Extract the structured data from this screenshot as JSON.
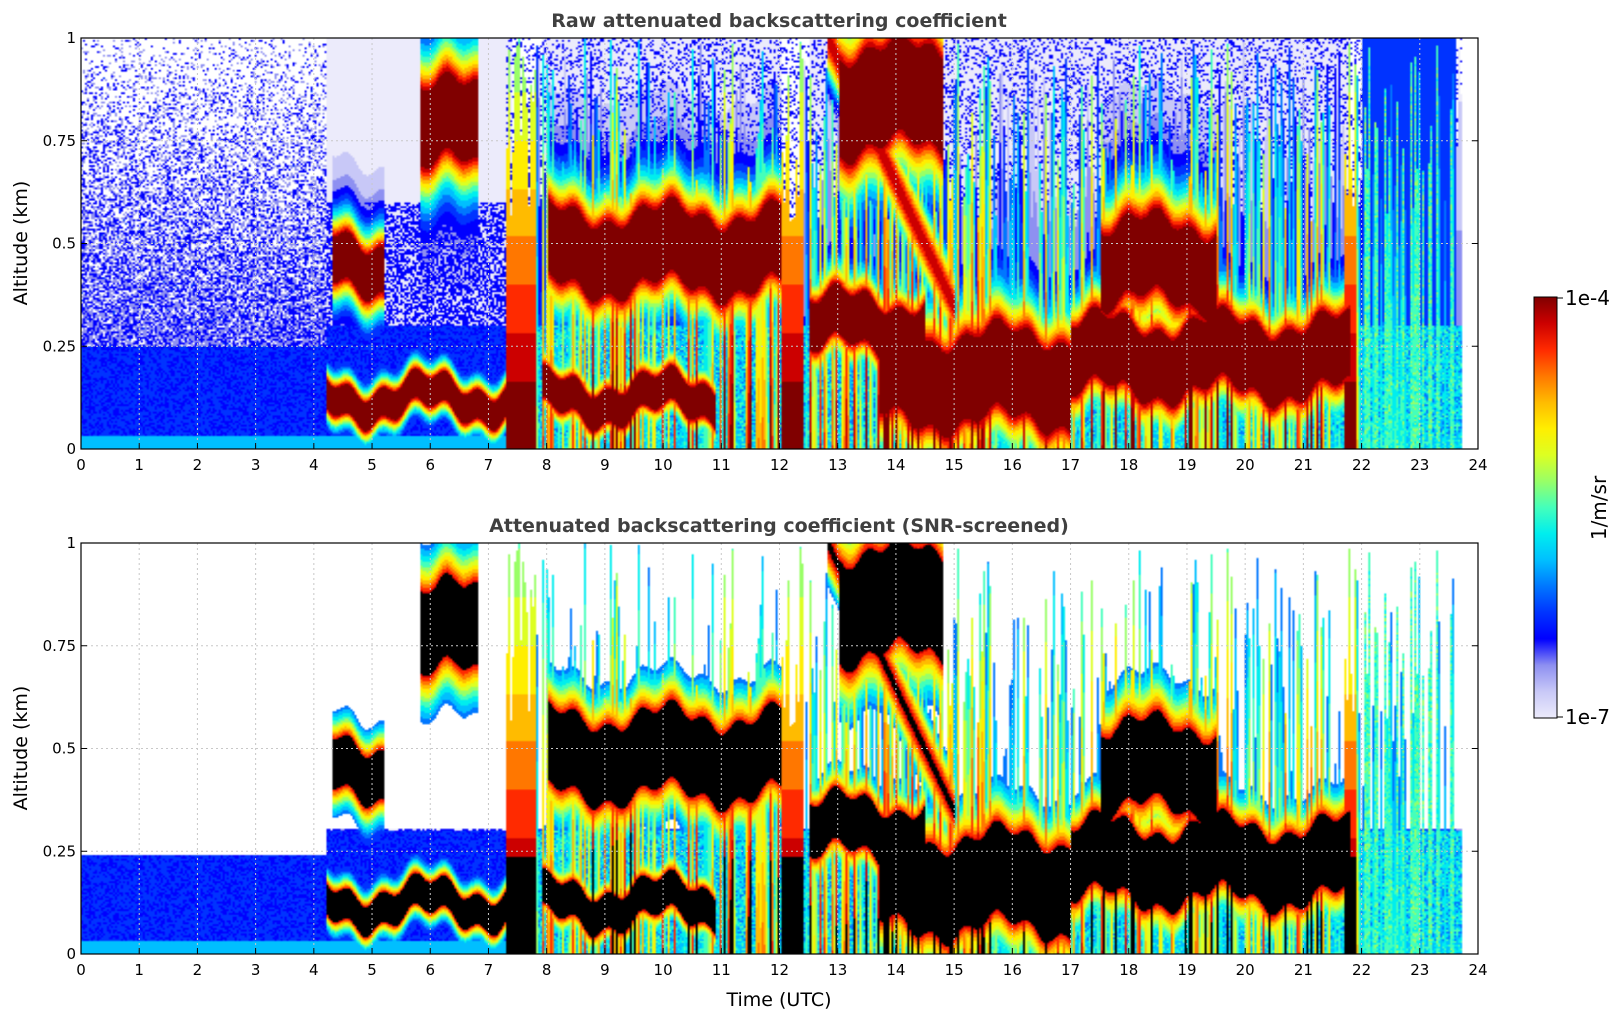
{
  "colors": {
    "jet": [
      "#ecebfb",
      "#c8c8f7",
      "#8e90f1",
      "#0000ff",
      "#0033ff",
      "#0077ff",
      "#00bfff",
      "#00eeee",
      "#44ffbb",
      "#99ff66",
      "#ddff22",
      "#ffee00",
      "#ffbb00",
      "#ff7700",
      "#ff2a00",
      "#cc0000",
      "#800000"
    ],
    "screened_saturated": "#000000",
    "grid": "#c8c8c8"
  },
  "chart_data": [
    {
      "type": "heatmap",
      "title": "Raw attenuated backscattering coefficient",
      "xlabel": "",
      "ylabel": "Altitude (km)",
      "xlim": [
        0,
        24
      ],
      "ylim": [
        0,
        1
      ],
      "xticks": [
        "0",
        "1",
        "2",
        "3",
        "4",
        "5",
        "6",
        "7",
        "8",
        "9",
        "10",
        "11",
        "12",
        "13",
        "14",
        "15",
        "16",
        "17",
        "18",
        "19",
        "20",
        "21",
        "22",
        "23",
        "24"
      ],
      "yticks": [
        "0",
        "0.25",
        "0.5",
        "0.75",
        "1"
      ],
      "data_end_time": 23.7,
      "features": [
        {
          "kind": "noise",
          "t0": 0.0,
          "t1": 4.2,
          "note": "background noise, dense below 0.3 km"
        },
        {
          "kind": "layer",
          "t0": 4.2,
          "t1": 7.4,
          "alt": 0.12,
          "width": 0.035,
          "level": 0.95
        },
        {
          "kind": "layer",
          "t0": 4.3,
          "t1": 5.2,
          "alt": 0.45,
          "width": 0.06,
          "level": 0.9
        },
        {
          "kind": "layer",
          "t0": 5.8,
          "t1": 6.8,
          "alt": 0.78,
          "width": 0.1,
          "level": 0.9
        },
        {
          "kind": "layer",
          "t0": 7.9,
          "t1": 10.9,
          "alt": 0.12,
          "width": 0.04,
          "level": 0.95
        },
        {
          "kind": "layer",
          "t0": 8.0,
          "t1": 12.0,
          "alt": 0.48,
          "width": 0.09,
          "level": 0.95
        },
        {
          "kind": "layer",
          "t0": 13.0,
          "t1": 14.8,
          "alt": 0.85,
          "width": 0.12,
          "level": 0.95
        },
        {
          "kind": "layer",
          "t0": 12.5,
          "t1": 14.5,
          "alt": 0.3,
          "width": 0.06,
          "level": 0.95
        },
        {
          "kind": "layer",
          "t0": 13.7,
          "t1": 17.0,
          "alt": 0.17,
          "width": 0.1,
          "level": 1.0
        },
        {
          "kind": "layer",
          "t0": 17.0,
          "t1": 21.8,
          "alt": 0.22,
          "width": 0.08,
          "level": 1.0
        },
        {
          "kind": "layer",
          "t0": 17.5,
          "t1": 19.5,
          "alt": 0.45,
          "width": 0.1,
          "level": 0.9
        },
        {
          "kind": "convective_streaks",
          "t0": 7.3,
          "t1": 23.6,
          "level_range": [
            0.5,
            1.0
          ]
        }
      ]
    },
    {
      "type": "heatmap",
      "title": "Attenuated backscattering coefficient (SNR-screened)",
      "xlabel": "Time (UTC)",
      "ylabel": "Altitude (km)",
      "xlim": [
        0,
        24
      ],
      "ylim": [
        0,
        1
      ],
      "xticks": [
        "0",
        "1",
        "2",
        "3",
        "4",
        "5",
        "6",
        "7",
        "8",
        "9",
        "10",
        "11",
        "12",
        "13",
        "14",
        "15",
        "16",
        "17",
        "18",
        "19",
        "20",
        "21",
        "22",
        "23",
        "24"
      ],
      "yticks": [
        "0",
        "0.25",
        "0.5",
        "0.75",
        "1"
      ],
      "screening_threshold_altitude_early": 0.24,
      "note": "same features as raw panel with low-SNR pixels removed; values above color-scale max drawn black"
    }
  ],
  "colorbar": {
    "label": "1/m/sr",
    "max_label": "1e-4",
    "min_label": "1e-7",
    "range": [
      1e-07,
      0.0001
    ],
    "scale": "log"
  }
}
